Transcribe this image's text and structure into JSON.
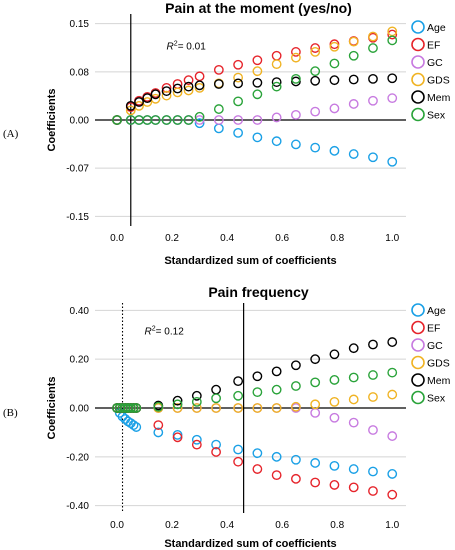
{
  "chart_data": [
    {
      "type": "scatter",
      "panel_label": "(A)",
      "title": "Pain at the moment (yes/no)",
      "xlabel": "Standardized sum of coefficients",
      "ylabel": "Coefficients",
      "xlim": [
        -0.08,
        1.05
      ],
      "ylim": [
        -0.165,
        0.165
      ],
      "xticks": [
        0.0,
        0.2,
        0.4,
        0.6,
        0.8,
        1.0
      ],
      "xtick_labels": [
        "0.0",
        "0.2",
        "0.4",
        "0.6",
        "0.8",
        "1.0"
      ],
      "yticks": [
        0.15,
        0.075,
        0.0,
        -0.075,
        -0.15
      ],
      "ytick_labels": [
        "0.15",
        "0.08",
        "0.00",
        "-0.07",
        "-0.15"
      ],
      "grid": "horizontal",
      "zero_line": 0,
      "vline_solid": 0.05,
      "annotation": {
        "prefix": "R",
        "sup": "2",
        "value": "= 0.01",
        "x": 0.18,
        "y": 0.11
      },
      "legend_position": "right",
      "series": [
        {
          "name": "Age",
          "color": "#1aa0e6",
          "x": [
            0.0,
            0.05,
            0.08,
            0.11,
            0.14,
            0.18,
            0.22,
            0.26,
            0.3,
            0.37,
            0.44,
            0.51,
            0.58,
            0.65,
            0.72,
            0.79,
            0.86,
            0.93,
            1.0
          ],
          "y": [
            0,
            0,
            0,
            0,
            0,
            0,
            0,
            0,
            -0.005,
            -0.013,
            -0.02,
            -0.027,
            -0.033,
            -0.038,
            -0.043,
            -0.048,
            -0.053,
            -0.058,
            -0.065
          ]
        },
        {
          "name": "EF",
          "color": "#e6242b",
          "x": [
            0.0,
            0.05,
            0.08,
            0.11,
            0.14,
            0.18,
            0.22,
            0.26,
            0.3,
            0.37,
            0.44,
            0.51,
            0.58,
            0.65,
            0.72,
            0.79,
            0.86,
            0.93,
            1.0
          ],
          "y": [
            0,
            0.02,
            0.03,
            0.036,
            0.042,
            0.05,
            0.056,
            0.062,
            0.068,
            0.078,
            0.086,
            0.093,
            0.1,
            0.106,
            0.112,
            0.118,
            0.123,
            0.128,
            0.133
          ]
        },
        {
          "name": "GC",
          "color": "#c77ae0",
          "x": [
            0.0,
            0.05,
            0.08,
            0.11,
            0.14,
            0.18,
            0.22,
            0.26,
            0.3,
            0.37,
            0.44,
            0.51,
            0.58,
            0.65,
            0.72,
            0.79,
            0.86,
            0.93,
            1.0
          ],
          "y": [
            0,
            0,
            0,
            0,
            0,
            0,
            0,
            0,
            0,
            0,
            0,
            0,
            0.004,
            0.008,
            0.013,
            0.018,
            0.025,
            0.03,
            0.034
          ]
        },
        {
          "name": "GDS",
          "color": "#f0b323",
          "x": [
            0.0,
            0.05,
            0.08,
            0.11,
            0.14,
            0.18,
            0.22,
            0.26,
            0.3,
            0.37,
            0.44,
            0.51,
            0.58,
            0.65,
            0.72,
            0.79,
            0.86,
            0.93,
            1.0
          ],
          "y": [
            0,
            0.015,
            0.022,
            0.028,
            0.033,
            0.038,
            0.043,
            0.046,
            0.05,
            0.057,
            0.066,
            0.076,
            0.087,
            0.097,
            0.106,
            0.114,
            0.122,
            0.13,
            0.138
          ]
        },
        {
          "name": "Mem",
          "color": "#000000",
          "x": [
            0.0,
            0.05,
            0.08,
            0.11,
            0.14,
            0.18,
            0.22,
            0.26,
            0.3,
            0.37,
            0.44,
            0.51,
            0.58,
            0.65,
            0.72,
            0.79,
            0.86,
            0.93,
            1.0
          ],
          "y": [
            0,
            0.022,
            0.028,
            0.034,
            0.04,
            0.045,
            0.049,
            0.052,
            0.054,
            0.056,
            0.057,
            0.058,
            0.059,
            0.06,
            0.061,
            0.062,
            0.063,
            0.064,
            0.065
          ]
        },
        {
          "name": "Sex",
          "color": "#2aa33a",
          "x": [
            0.0,
            0.05,
            0.08,
            0.11,
            0.14,
            0.18,
            0.22,
            0.26,
            0.3,
            0.37,
            0.44,
            0.51,
            0.58,
            0.65,
            0.72,
            0.79,
            0.86,
            0.93,
            1.0
          ],
          "y": [
            0,
            0,
            0,
            0,
            0,
            0,
            0,
            0,
            0.005,
            0.017,
            0.029,
            0.04,
            0.052,
            0.064,
            0.076,
            0.088,
            0.1,
            0.112,
            0.124
          ]
        }
      ]
    },
    {
      "type": "scatter",
      "panel_label": "(B)",
      "title": "Pain frequency",
      "xlabel": "Standardized sum of coefficients",
      "ylabel": "Coefficients",
      "xlim": [
        -0.08,
        1.05
      ],
      "ylim": [
        -0.43,
        0.43
      ],
      "xticks": [
        0.0,
        0.2,
        0.4,
        0.6,
        0.8,
        1.0
      ],
      "xtick_labels": [
        "0.0",
        "0.2",
        "0.4",
        "0.6",
        "0.8",
        "1.0"
      ],
      "yticks": [
        0.4,
        0.2,
        0.0,
        -0.2,
        -0.4
      ],
      "ytick_labels": [
        "0.40",
        "0.20",
        "0.00",
        "-0.20",
        "-0.40"
      ],
      "grid": "horizontal",
      "zero_line": 0,
      "vline_dotted": 0.02,
      "vline_solid": 0.46,
      "annotation": {
        "prefix": "R",
        "sup": "2",
        "value": "= 0.12",
        "x": 0.1,
        "y": 0.3
      },
      "legend_position": "right",
      "series": [
        {
          "name": "Age",
          "color": "#1aa0e6",
          "x": [
            0.0,
            0.01,
            0.02,
            0.03,
            0.04,
            0.05,
            0.06,
            0.07,
            0.15,
            0.22,
            0.29,
            0.36,
            0.44,
            0.51,
            0.58,
            0.65,
            0.72,
            0.79,
            0.86,
            0.93,
            1.0
          ],
          "y": [
            0,
            -0.02,
            -0.035,
            -0.045,
            -0.055,
            -0.062,
            -0.07,
            -0.078,
            -0.1,
            -0.11,
            -0.13,
            -0.15,
            -0.17,
            -0.185,
            -0.2,
            -0.212,
            -0.225,
            -0.237,
            -0.25,
            -0.26,
            -0.27
          ]
        },
        {
          "name": "EF",
          "color": "#e6242b",
          "x": [
            0.0,
            0.01,
            0.02,
            0.03,
            0.04,
            0.05,
            0.06,
            0.07,
            0.15,
            0.22,
            0.29,
            0.36,
            0.44,
            0.51,
            0.58,
            0.65,
            0.72,
            0.79,
            0.86,
            0.93,
            1.0
          ],
          "y": [
            0,
            0,
            0,
            0,
            0,
            0,
            0,
            0,
            -0.07,
            -0.12,
            -0.15,
            -0.18,
            -0.22,
            -0.25,
            -0.275,
            -0.29,
            -0.305,
            -0.315,
            -0.325,
            -0.34,
            -0.355
          ]
        },
        {
          "name": "GC",
          "color": "#c77ae0",
          "x": [
            0.0,
            0.01,
            0.02,
            0.03,
            0.04,
            0.05,
            0.06,
            0.07,
            0.15,
            0.22,
            0.29,
            0.36,
            0.44,
            0.51,
            0.58,
            0.65,
            0.72,
            0.79,
            0.86,
            0.93,
            1.0
          ],
          "y": [
            0,
            0,
            0,
            0,
            0,
            0,
            0,
            0,
            0,
            0,
            0,
            0,
            0,
            0,
            0,
            0,
            -0.02,
            -0.04,
            -0.06,
            -0.09,
            -0.115
          ]
        },
        {
          "name": "GDS",
          "color": "#f0b323",
          "x": [
            0.0,
            0.01,
            0.02,
            0.03,
            0.04,
            0.05,
            0.06,
            0.07,
            0.15,
            0.22,
            0.29,
            0.36,
            0.44,
            0.51,
            0.58,
            0.65,
            0.72,
            0.79,
            0.86,
            0.93,
            1.0
          ],
          "y": [
            0,
            0,
            0,
            0,
            0,
            0,
            0,
            0,
            0,
            0,
            0,
            0,
            0,
            0,
            0,
            0.005,
            0.015,
            0.025,
            0.035,
            0.045,
            0.055
          ]
        },
        {
          "name": "Mem",
          "color": "#000000",
          "x": [
            0.0,
            0.01,
            0.02,
            0.03,
            0.04,
            0.05,
            0.06,
            0.07,
            0.15,
            0.22,
            0.29,
            0.36,
            0.44,
            0.51,
            0.58,
            0.65,
            0.72,
            0.79,
            0.86,
            0.93,
            1.0
          ],
          "y": [
            0,
            0,
            0,
            0,
            0,
            0,
            0,
            0,
            0.01,
            0.03,
            0.05,
            0.075,
            0.11,
            0.13,
            0.15,
            0.175,
            0.2,
            0.22,
            0.245,
            0.26,
            0.27
          ]
        },
        {
          "name": "Sex",
          "color": "#2aa33a",
          "x": [
            0.0,
            0.01,
            0.02,
            0.03,
            0.04,
            0.05,
            0.06,
            0.07,
            0.15,
            0.22,
            0.29,
            0.36,
            0.44,
            0.51,
            0.58,
            0.65,
            0.72,
            0.79,
            0.86,
            0.93,
            1.0
          ],
          "y": [
            0,
            0,
            0,
            0,
            0,
            0,
            0,
            0,
            0.005,
            0.015,
            0.025,
            0.04,
            0.05,
            0.065,
            0.075,
            0.09,
            0.105,
            0.115,
            0.125,
            0.135,
            0.145
          ]
        }
      ]
    }
  ]
}
